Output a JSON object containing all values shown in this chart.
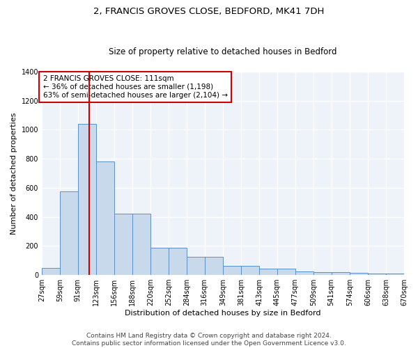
{
  "title1": "2, FRANCIS GROVES CLOSE, BEDFORD, MK41 7DH",
  "title2": "Size of property relative to detached houses in Bedford",
  "xlabel": "Distribution of detached houses by size in Bedford",
  "ylabel": "Number of detached properties",
  "bin_edges": [
    27,
    59,
    91,
    123,
    156,
    188,
    220,
    252,
    284,
    316,
    349,
    381,
    413,
    445,
    477,
    509,
    541,
    574,
    606,
    638,
    670
  ],
  "bar_heights": [
    50,
    575,
    1040,
    780,
    420,
    420,
    185,
    185,
    125,
    125,
    65,
    65,
    45,
    45,
    25,
    20,
    20,
    15,
    10,
    10
  ],
  "bar_color": "#c9d9ec",
  "bar_edge_color": "#5b8fc9",
  "background_color": "#eef2f9",
  "grid_color": "#ffffff",
  "vline_x": 111,
  "vline_color": "#cc0000",
  "annotation_text": "2 FRANCIS GROVES CLOSE: 111sqm\n← 36% of detached houses are smaller (1,198)\n63% of semi-detached houses are larger (2,104) →",
  "annotation_box_color": "#cc0000",
  "ylim": [
    0,
    1400
  ],
  "yticks": [
    0,
    200,
    400,
    600,
    800,
    1000,
    1200,
    1400
  ],
  "footnote": "Contains HM Land Registry data © Crown copyright and database right 2024.\nContains public sector information licensed under the Open Government Licence v3.0.",
  "title1_fontsize": 9.5,
  "title2_fontsize": 8.5,
  "xlabel_fontsize": 8,
  "ylabel_fontsize": 8,
  "tick_fontsize": 7,
  "annotation_fontsize": 7.5,
  "footnote_fontsize": 6.5
}
